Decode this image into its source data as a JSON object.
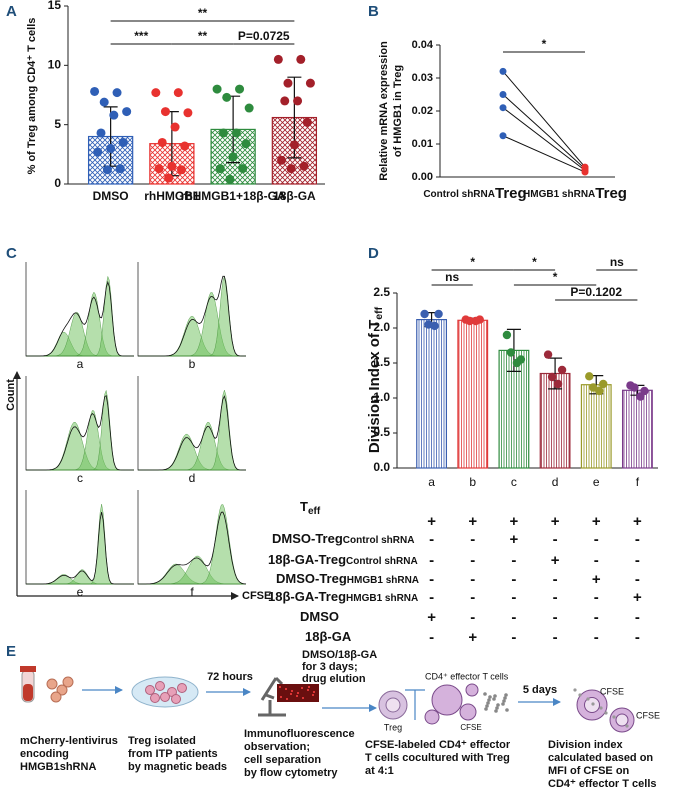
{
  "panel_labels": [
    "A",
    "B",
    "C",
    "D",
    "E"
  ],
  "chart_data": [
    {
      "type": "bar",
      "y_label": "% of Treg among CD4⁺ T cells",
      "categories": [
        "DMSO",
        "rhHMGB1",
        "rhHMGB1+18β-GA",
        "18β-GA"
      ],
      "values": [
        4.0,
        3.4,
        4.6,
        5.6
      ],
      "errors": [
        2.5,
        2.7,
        2.8,
        3.4
      ],
      "points": [
        [
          7.8,
          7.7,
          6.9,
          6.1,
          5.8,
          4.3,
          3.5,
          3.0,
          2.7,
          1.3,
          1.2
        ],
        [
          7.7,
          7.7,
          6.1,
          6.0,
          4.8,
          3.5,
          3.2,
          1.5,
          1.3,
          1.2,
          0.5
        ],
        [
          8.0,
          8.0,
          7.3,
          6.4,
          4.3,
          4.3,
          3.4,
          2.3,
          1.3,
          1.3,
          0.4
        ],
        [
          10.5,
          10.5,
          8.5,
          8.5,
          7.0,
          7.0,
          5.2,
          3.3,
          2.0,
          1.5,
          1.3
        ]
      ],
      "colors": [
        "#2f5fb6",
        "#e8322f",
        "#2e8b3e",
        "#a3202a"
      ],
      "ylim": [
        0,
        15
      ],
      "yticks": [
        0,
        5,
        10,
        15
      ],
      "annotations": [
        "**",
        "***",
        "**",
        "P=0.0725"
      ]
    },
    {
      "type": "line",
      "y_label": [
        "Relative mRNA expression",
        "of HMGB1 in Treg"
      ],
      "categories": [
        [
          "Control shRNA",
          "Treg"
        ],
        [
          "HMGB1 shRNA",
          "Treg"
        ]
      ],
      "series": [
        {
          "values": [
            0.032,
            0.003
          ]
        },
        {
          "values": [
            0.025,
            0.0025
          ]
        },
        {
          "values": [
            0.021,
            0.002
          ]
        },
        {
          "values": [
            0.0125,
            0.0015
          ]
        }
      ],
      "point_colors": [
        "#2f5fb6",
        "#e8322f"
      ],
      "ylim": [
        0,
        0.04
      ],
      "yticks": [
        {
          "value": 0,
          "label": "0.00"
        },
        0.01,
        0.02,
        0.03,
        0.04
      ],
      "annotations": [
        "*"
      ]
    },
    {
      "type": "bar",
      "y_label": [
        "Division Index of T",
        "eff"
      ],
      "categories": [
        "a",
        "b",
        "c",
        "d",
        "e",
        "f"
      ],
      "values": [
        2.12,
        2.11,
        1.68,
        1.35,
        1.19,
        1.11
      ],
      "errors": [
        0.1,
        0.03,
        0.3,
        0.22,
        0.13,
        0.07
      ],
      "points": [
        [
          2.2,
          2.2,
          2.05,
          2.03
        ],
        [
          2.12,
          2.12,
          2.1,
          2.1
        ],
        [
          1.9,
          1.55,
          1.65,
          1.5
        ],
        [
          1.62,
          1.4,
          1.3,
          1.2
        ],
        [
          1.31,
          1.2,
          1.15,
          1.1
        ],
        [
          1.18,
          1.1,
          1.15,
          1.02
        ]
      ],
      "colors": [
        "#3a5fb0",
        "#e03a3a",
        "#2e8b3e",
        "#9c2a3a",
        "#9a9a2a",
        "#7a3a8a"
      ],
      "ylim": [
        0,
        2.5
      ],
      "yticks": [
        {
          "value": 0,
          "label": "0.0"
        },
        0.5,
        {
          "value": 1,
          "label": "1.0"
        },
        1.5,
        {
          "value": 2,
          "label": "2.0"
        },
        2.5
      ],
      "annotations": [
        "*",
        "ns",
        "*",
        "*",
        "P=0.1202",
        "ns"
      ]
    }
  ],
  "flow_cytometry": {
    "panels": [
      "a",
      "b",
      "c",
      "d",
      "e",
      "f"
    ],
    "y_label": "Count",
    "x_label": "CFSE"
  },
  "conditions": {
    "rows": [
      {
        "label": [
          "T",
          "eff"
        ],
        "cells": [
          "+",
          "+",
          "+",
          "+",
          "+",
          "+"
        ]
      },
      {
        "label": [
          "DMSO-Treg",
          "Control shRNA"
        ],
        "cells": [
          "-",
          "-",
          "+",
          "-",
          "-",
          "-"
        ]
      },
      {
        "label": [
          "18β-GA-Treg",
          "Control shRNA"
        ],
        "cells": [
          "-",
          "-",
          "-",
          "+",
          "-",
          "-"
        ]
      },
      {
        "label": [
          "DMSO-Treg",
          "HMGB1 shRNA"
        ],
        "cells": [
          "-",
          "-",
          "-",
          "-",
          "+",
          "-"
        ]
      },
      {
        "label": [
          "18β-GA-Treg",
          "HMGB1 shRNA"
        ],
        "cells": [
          "-",
          "-",
          "-",
          "-",
          "-",
          "+"
        ]
      },
      {
        "label": [
          "DMSO"
        ],
        "cells": [
          "+",
          "-",
          "-",
          "-",
          "-",
          "-"
        ]
      },
      {
        "label": [
          "18β-GA"
        ],
        "cells": [
          "-",
          "+",
          "-",
          "-",
          "-",
          "-"
        ]
      }
    ]
  },
  "workflow": {
    "captions": [
      [
        "mCherry-lentivirus",
        "encoding",
        "HMGB1shRNA"
      ],
      [
        "Treg isolated",
        "from ITP patients",
        "by magnetic beads"
      ],
      [
        "Immunofluorescence",
        "observation;",
        "cell separation",
        "by flow cytometry"
      ],
      [
        "CFSE-labeled CD4⁺ effector",
        "T cells cocultured with Treg",
        "at 4:1"
      ],
      [
        "Division index",
        "calculated based on",
        "MFI of CFSE on",
        "CD4⁺ effector T cells"
      ]
    ],
    "arrow_labels": [
      [
        "72 hours"
      ],
      [
        "DMSO/18β-GA",
        "for 3 days;",
        "drug elution"
      ],
      [
        "5 days"
      ]
    ],
    "cell_labels": [
      "Treg",
      "CD4⁺ effector T cells",
      "CFSE",
      "CFSE",
      "CFSE"
    ]
  }
}
